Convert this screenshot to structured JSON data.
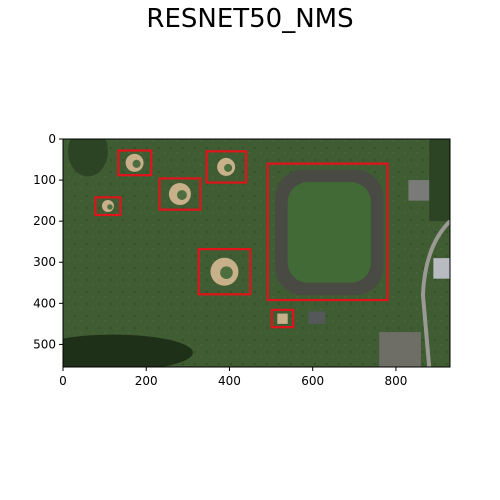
{
  "title": "RESNET50_NMS",
  "image": {
    "width_data": 930,
    "height_data": 555,
    "description_colors": {
      "grass": "#3d5a32",
      "dark_grass": "#2c4424",
      "dirt": "#c8b08a",
      "track": "#4a4a44",
      "trees": "#1f3018"
    }
  },
  "axes": {
    "x_ticks": [
      0,
      200,
      400,
      600,
      800
    ],
    "y_ticks": [
      0,
      100,
      200,
      300,
      400,
      500
    ]
  },
  "detections": {
    "color": "#e0141a",
    "boxes": [
      {
        "x1": 133,
        "y1": 28,
        "x2": 212,
        "y2": 88
      },
      {
        "x1": 78,
        "y1": 142,
        "x2": 138,
        "y2": 185
      },
      {
        "x1": 232,
        "y1": 96,
        "x2": 330,
        "y2": 172
      },
      {
        "x1": 345,
        "y1": 30,
        "x2": 440,
        "y2": 106
      },
      {
        "x1": 326,
        "y1": 268,
        "x2": 450,
        "y2": 378
      },
      {
        "x1": 492,
        "y1": 60,
        "x2": 780,
        "y2": 392
      },
      {
        "x1": 502,
        "y1": 416,
        "x2": 553,
        "y2": 458
      }
    ]
  }
}
